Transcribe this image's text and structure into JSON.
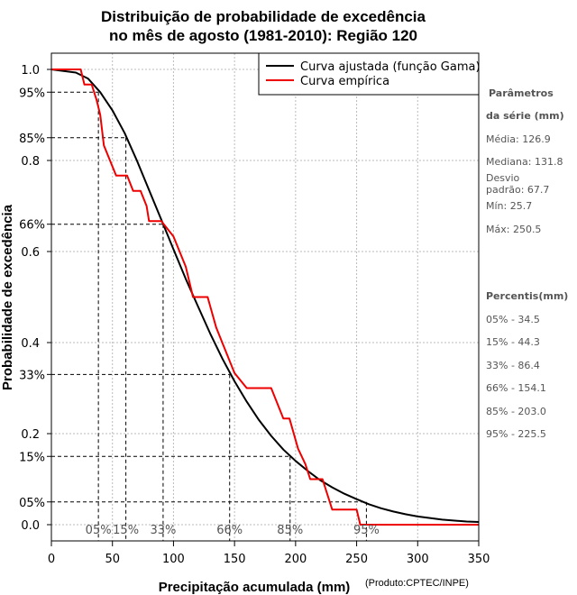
{
  "chart_data": {
    "type": "line",
    "title_line1": "Distribuição de probabilidade de excedência",
    "title_line2": "no mês de agosto (1981-2010): Região 120",
    "xlabel": "Precipitação acumulada (mm)",
    "ylabel": "Probabilidade de excedência",
    "credit": "(Produto:CPTEC/INPE)",
    "xlim": [
      0,
      350
    ],
    "ylim": [
      0,
      1
    ],
    "x_ticks": [
      "0",
      "50",
      "100",
      "150",
      "200",
      "250",
      "300",
      "350"
    ],
    "y_ticks": [
      "0.0",
      "0.2",
      "0.4",
      "0.6",
      "0.8",
      "1.0"
    ],
    "y_pct_ticks": [
      {
        "value": 0.95,
        "label": "95%"
      },
      {
        "value": 0.85,
        "label": "85%"
      },
      {
        "value": 0.66,
        "label": "66%"
      },
      {
        "value": 0.33,
        "label": "33%"
      },
      {
        "value": 0.15,
        "label": "15%"
      },
      {
        "value": 0.05,
        "label": "05%"
      }
    ],
    "percentile_markers": [
      {
        "label": "05%",
        "x": 38.5,
        "p": 0.95
      },
      {
        "label": "15%",
        "x": 61.0,
        "p": 0.85
      },
      {
        "label": "33%",
        "x": 91.5,
        "p": 0.66
      },
      {
        "label": "66%",
        "x": 146.0,
        "p": 0.33
      },
      {
        "label": "85%",
        "x": 195.5,
        "p": 0.15
      },
      {
        "label": "95%",
        "x": 258.0,
        "p": 0.05
      }
    ],
    "series": [
      {
        "name": "Curva ajustada (função Gama)",
        "color": "#000000",
        "x": [
          0,
          20,
          30,
          40,
          50,
          60,
          70,
          80,
          90,
          100,
          110,
          120,
          130,
          140,
          150,
          160,
          170,
          180,
          190,
          200,
          210,
          220,
          230,
          240,
          250,
          260,
          270,
          280,
          290,
          300,
          320,
          340,
          350
        ],
        "y": [
          1.0,
          0.993,
          0.98,
          0.95,
          0.91,
          0.86,
          0.8,
          0.735,
          0.67,
          0.605,
          0.54,
          0.48,
          0.42,
          0.365,
          0.315,
          0.27,
          0.23,
          0.195,
          0.165,
          0.14,
          0.118,
          0.098,
          0.082,
          0.068,
          0.056,
          0.045,
          0.036,
          0.029,
          0.023,
          0.018,
          0.011,
          0.007,
          0.006
        ]
      },
      {
        "name": "Curva empírica",
        "color": "#ee0000",
        "x": [
          0,
          24,
          27,
          33,
          37,
          40,
          43,
          48,
          53,
          62,
          67,
          73,
          78,
          80,
          90,
          100,
          105,
          110,
          116,
          128,
          135,
          150,
          160,
          180,
          190,
          195,
          202,
          208,
          212,
          222,
          230,
          250,
          253,
          350
        ],
        "y": [
          1.0,
          1.0,
          0.967,
          0.967,
          0.933,
          0.9,
          0.833,
          0.8,
          0.767,
          0.767,
          0.733,
          0.733,
          0.7,
          0.667,
          0.667,
          0.633,
          0.6,
          0.567,
          0.5,
          0.5,
          0.433,
          0.333,
          0.3,
          0.3,
          0.233,
          0.233,
          0.167,
          0.133,
          0.1,
          0.1,
          0.033,
          0.033,
          0.0,
          0.0
        ]
      }
    ],
    "legend": [
      "Curva ajustada (função Gama)",
      "Curva empírica"
    ],
    "legend_position": "top-right",
    "grid": true
  },
  "side_panel": {
    "params_heading_1": "Parâmetros",
    "params_heading_2": "da série (mm)",
    "media": "Média: 126.9",
    "mediana": "Mediana: 131.8",
    "desvio_1": "Desvio",
    "desvio_2": "padrão: 67.7",
    "min": "Mín: 25.7",
    "max": "Máx: 250.5",
    "percentis_heading": "Percentis(mm)",
    "percentis": [
      "05% - 34.5",
      "15% - 44.3",
      "33% - 86.4",
      "66% - 154.1",
      "85% - 203.0",
      "95% - 225.5"
    ]
  }
}
